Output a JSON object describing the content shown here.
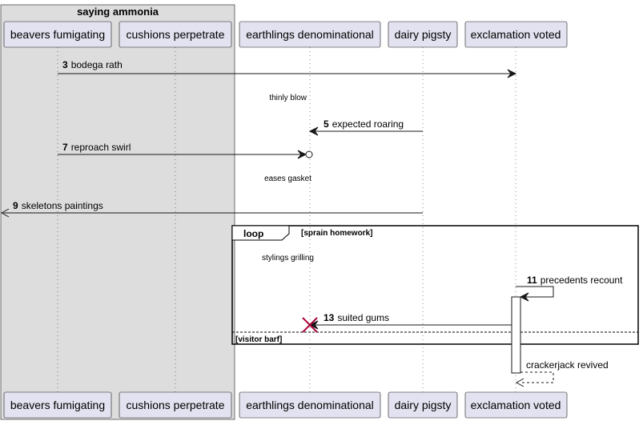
{
  "group": {
    "title": "saying ammonia"
  },
  "participants": [
    {
      "id": "p1",
      "label": "beavers fumigating"
    },
    {
      "id": "p2",
      "label": "cushions perpetrate"
    },
    {
      "id": "p3",
      "label": "earthlings denominational"
    },
    {
      "id": "p4",
      "label": "dairy pigsty"
    },
    {
      "id": "p5",
      "label": "exclamation voted"
    }
  ],
  "messages": [
    {
      "num": "3",
      "text": "bodega rath"
    },
    {
      "num": "5",
      "text": "expected roaring"
    },
    {
      "num": "7",
      "text": "reproach swirl"
    },
    {
      "num": "9",
      "text": "skeletons paintings"
    },
    {
      "num": "11",
      "text": "precedents recount"
    },
    {
      "num": "13",
      "text": "suited gums"
    },
    {
      "num": "",
      "text": "crackerjack revived"
    }
  ],
  "notes": {
    "thinly_blow": "thinly blow",
    "eases_gasket": "eases gasket",
    "stylings_grilling": "stylings grilling"
  },
  "loop": {
    "keyword": "loop",
    "guard": "[sprain homework]",
    "else_guard": "[visitor barf]"
  },
  "colors": {
    "participant_fill": "#e2e2f0",
    "group_fill": "#dddddd",
    "line": "#181818",
    "destroy": "#a80036"
  }
}
